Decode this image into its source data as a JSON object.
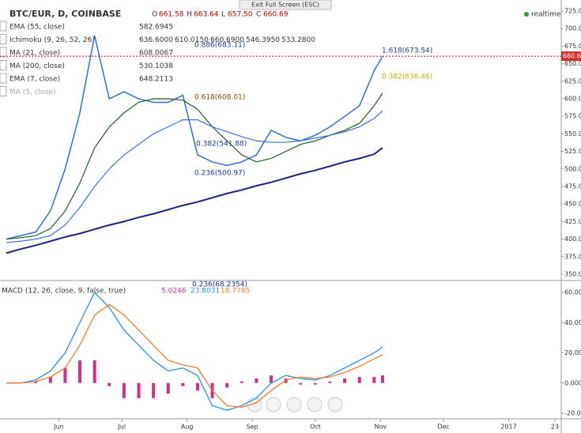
{
  "header": {
    "symbol": "BTC/EUR, D, COINBASE",
    "o": "O",
    "o_val": "661.58",
    "h": "H",
    "h_val": "663.64",
    "l": "L",
    "l_val": "657.50",
    "c": "C"
  },
  "fullscreen": "Exit Full Screen (ESC)",
  "realtime": "realtime",
  "indicators": [
    {
      "name": "EMA (55, close)",
      "values": [
        "582.6945"
      ]
    },
    {
      "name": "Ichimoku (9, 26, 52, 26)",
      "values": [
        "636.6000",
        "610.0150",
        "660.6900",
        "546.3950",
        "533.2800"
      ]
    },
    {
      "name": "MA (21, close)",
      "values": [
        "608.0067"
      ]
    },
    {
      "name": "MA (200, close)",
      "values": [
        "530.1038"
      ]
    },
    {
      "name": "EMA (7, close)",
      "values": [
        "648.2113"
      ]
    },
    {
      "name": "MA (5, close)",
      "values": []
    }
  ],
  "annotations": [
    "0.886(683.11)",
    "0.618(608.01)",
    "0.382(541.88)",
    "0.236(500.97)",
    "1.618(673.54)",
    "0.382(636.46)",
    "0.236(68.2354)"
  ],
  "chart_data": [
    {
      "type": "line",
      "x": [
        128,
        135,
        142,
        149,
        156,
        163,
        170,
        177,
        184,
        191,
        198,
        205,
        212,
        219,
        226,
        233,
        240,
        247,
        254,
        261,
        268,
        275,
        282,
        289,
        296,
        303,
        307
      ],
      "series": [
        {
          "name": "BTC/EUR",
          "color": "#2e6fd1",
          "values": [
            400,
            405,
            410,
            440,
            500,
            580,
            690,
            600,
            610,
            600,
            595,
            595,
            605,
            520,
            510,
            505,
            510,
            520,
            555,
            545,
            540,
            548,
            560,
            575,
            590,
            640,
            660.69
          ]
        },
        {
          "name": "MA (21, close)",
          "color": "#1f5f1f",
          "values": [
            400,
            402,
            405,
            415,
            440,
            480,
            530,
            560,
            580,
            595,
            600,
            600,
            598,
            585,
            560,
            540,
            520,
            510,
            515,
            525,
            535,
            540,
            548,
            555,
            565,
            590,
            608.0067
          ]
        },
        {
          "name": "EMA (55, close)",
          "color": "#3f6fe0",
          "values": [
            395,
            397,
            400,
            405,
            420,
            445,
            475,
            500,
            520,
            535,
            550,
            560,
            570,
            570,
            560,
            553,
            546,
            540,
            538,
            538,
            540,
            544,
            548,
            553,
            560,
            572,
            582.6945
          ]
        },
        {
          "name": "MA (200, close)",
          "color": "#1a237e",
          "values": [
            380,
            386,
            391,
            397,
            403,
            408,
            414,
            420,
            425,
            431,
            436,
            442,
            448,
            453,
            459,
            465,
            470,
            476,
            481,
            487,
            493,
            498,
            504,
            510,
            515,
            521,
            530.1038
          ]
        }
      ],
      "xlim": [
        125,
        392
      ],
      "ylim": [
        350,
        725
      ],
      "yticks": [
        {
          "value": 350,
          "label": "350.00"
        },
        {
          "value": 375,
          "label": "375.00"
        },
        {
          "value": 400,
          "label": "400.00"
        },
        {
          "value": 425,
          "label": "425.00"
        },
        {
          "value": 450,
          "label": "450.00"
        },
        {
          "value": 475,
          "label": "475.00"
        },
        {
          "value": 500,
          "label": "500.00"
        },
        {
          "value": 525,
          "label": "525.00"
        },
        {
          "value": 550,
          "label": "550.00"
        },
        {
          "value": 575,
          "label": "575.00"
        },
        {
          "value": 600,
          "label": "600.00"
        },
        {
          "value": 625,
          "label": "625.00"
        },
        {
          "value": 650,
          "label": "650.00"
        },
        {
          "value": 675,
          "label": "675.00"
        },
        {
          "value": 700,
          "label": "700.00"
        },
        {
          "value": 725,
          "label": "725.00"
        }
      ]
    },
    {
      "type": "macd",
      "title": "MACD (12, 26, close, 9, false, true)",
      "x": [
        128,
        135,
        142,
        149,
        156,
        163,
        170,
        177,
        184,
        191,
        198,
        205,
        212,
        219,
        226,
        233,
        240,
        247,
        254,
        261,
        268,
        275,
        282,
        289,
        296,
        303,
        307
      ],
      "series": [
        {
          "name": "MACD",
          "color": "#2f8fd8",
          "values": [
            0,
            0,
            2,
            8,
            20,
            40,
            60,
            50,
            35,
            25,
            15,
            8,
            10,
            5,
            -15,
            -18,
            -15,
            -10,
            0,
            5,
            3,
            2,
            5,
            10,
            15,
            20,
            23.8031
          ]
        },
        {
          "name": "Signal",
          "color": "#f07b2a",
          "values": [
            0,
            0,
            1,
            4,
            10,
            25,
            45,
            52,
            45,
            35,
            25,
            15,
            12,
            10,
            -5,
            -15,
            -16,
            -13,
            -5,
            2,
            4,
            3,
            4,
            7,
            11,
            16,
            18.7785
          ]
        },
        {
          "name": "Histogram",
          "color": "#d0308a",
          "values": [
            0,
            0,
            1,
            4,
            10,
            15,
            15,
            -2,
            -10,
            -10,
            -10,
            -7,
            -2,
            -5,
            -10,
            -3,
            1,
            3,
            5,
            3,
            -1,
            -1,
            1,
            3,
            4,
            4,
            5.0246
          ]
        }
      ],
      "xlim": [
        125,
        392
      ],
      "ylim": [
        -20,
        60
      ],
      "xticks": [
        {
          "value": 153,
          "label": "Jun"
        },
        {
          "value": 183,
          "label": "Jul"
        },
        {
          "value": 214,
          "label": "Aug"
        },
        {
          "value": 245,
          "label": "Sep"
        },
        {
          "value": 275,
          "label": "Oct"
        },
        {
          "value": 306,
          "label": "Nov"
        },
        {
          "value": 336,
          "label": "Dec"
        },
        {
          "value": 367,
          "label": "2017"
        },
        {
          "value": 389,
          "label": "23"
        }
      ],
      "yticks": [
        {
          "value": -20,
          "label": "-20.0000"
        },
        {
          "value": 0,
          "label": "0.0000"
        },
        {
          "value": 20,
          "label": "20.0000"
        },
        {
          "value": 40,
          "label": "40.0000"
        },
        {
          "value": 60,
          "label": "60.0000"
        }
      ]
    }
  ]
}
